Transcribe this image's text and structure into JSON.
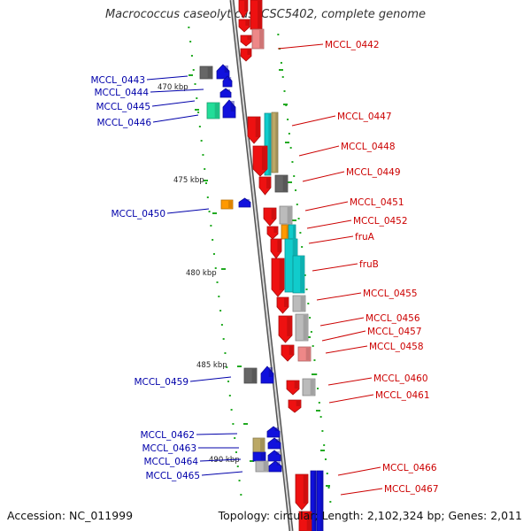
{
  "title": "Macrococcus caseolyticus JCSC5402, complete genome",
  "accession": "Accession: NC_011999",
  "summary": "Topology: circular; Length: 2,102,324 bp; Genes: 2,011",
  "colors": {
    "red": "#ee1111",
    "blue": "#1111dd",
    "cyan": "#11cccc",
    "gray": "#bbbbbb",
    "darkgray": "#666666",
    "orange": "#ff9900",
    "green": "#22dd99",
    "olive": "#bba866",
    "tick": "#22aa22",
    "right_label": "#cc0000",
    "left_label": "#0000aa",
    "axis": "#999999"
  },
  "scale_labels": [
    "470 kbp",
    "475 kbp",
    "480 kbp",
    "485 kbp",
    "490 kbp"
  ],
  "right_genes": [
    "MCCL_0442",
    "MCCL_0447",
    "MCCL_0448",
    "MCCL_0449",
    "MCCL_0451",
    "MCCL_0452",
    "fruA",
    "fruB",
    "MCCL_0455",
    "MCCL_0456",
    "MCCL_0457",
    "MCCL_0458",
    "MCCL_0460",
    "MCCL_0461",
    "MCCL_0466",
    "MCCL_0467"
  ],
  "left_genes": [
    "MCCL_0443",
    "MCCL_0444",
    "MCCL_0445",
    "MCCL_0446",
    "MCCL_0450",
    "MCCL_0459",
    "MCCL_0462",
    "MCCL_0463",
    "MCCL_0464",
    "MCCL_0465"
  ]
}
